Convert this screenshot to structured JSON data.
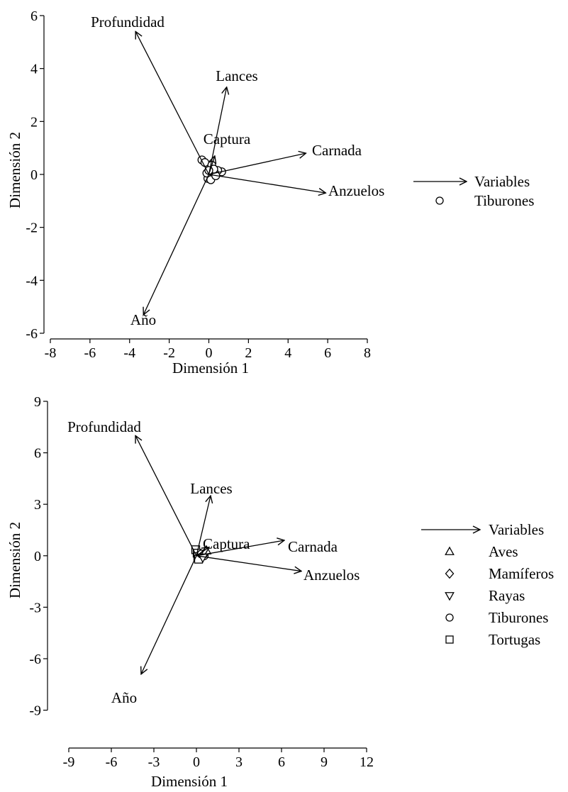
{
  "chart_data": [
    {
      "type": "biplot",
      "xlabel": "Dimensión 1",
      "ylabel": "Dimensión 2",
      "xlim": [
        -8,
        8
      ],
      "ylim": [
        -6,
        6
      ],
      "x_ticks": [
        -8,
        -6,
        -4,
        -2,
        0,
        2,
        4,
        6,
        8
      ],
      "y_ticks": [
        -6,
        -4,
        -2,
        0,
        2,
        4,
        6
      ],
      "legend_position": "right",
      "legend": [
        {
          "label": "Variables",
          "symbol": "arrow"
        },
        {
          "label": "Tiburones",
          "symbol": "circle"
        }
      ],
      "vectors": [
        {
          "name": "Profundidad",
          "x": -3.7,
          "y": 5.4
        },
        {
          "name": "Lances",
          "x": 0.9,
          "y": 3.3
        },
        {
          "name": "Captura",
          "x": 0.3,
          "y": 0.7
        },
        {
          "name": "Carnada",
          "x": 4.9,
          "y": 0.8
        },
        {
          "name": "Anzuelos",
          "x": 5.9,
          "y": -0.7
        },
        {
          "name": "Año",
          "x": -3.3,
          "y": -5.3
        }
      ],
      "points": [
        {
          "group": "Tiburones",
          "x": -0.35,
          "y": 0.55
        },
        {
          "group": "Tiburones",
          "x": -0.2,
          "y": 0.45
        },
        {
          "group": "Tiburones",
          "x": 0.15,
          "y": 0.35
        },
        {
          "group": "Tiburones",
          "x": 0.65,
          "y": 0.1
        },
        {
          "group": "Tiburones",
          "x": 0.45,
          "y": 0.15
        },
        {
          "group": "Tiburones",
          "x": 0.3,
          "y": 0.05
        },
        {
          "group": "Tiburones",
          "x": 0.05,
          "y": 0.0
        },
        {
          "group": "Tiburones",
          "x": 0.2,
          "y": -0.05
        },
        {
          "group": "Tiburones",
          "x": -0.05,
          "y": -0.15
        },
        {
          "group": "Tiburones",
          "x": 0.1,
          "y": -0.2
        },
        {
          "group": "Tiburones",
          "x": 0.35,
          "y": -0.05
        },
        {
          "group": "Tiburones",
          "x": 0.25,
          "y": 0.2
        },
        {
          "group": "Tiburones",
          "x": -0.1,
          "y": 0.05
        },
        {
          "group": "Tiburones",
          "x": 0.0,
          "y": 0.15
        }
      ]
    },
    {
      "type": "biplot",
      "xlabel": "Dimensión 1",
      "ylabel": "Dimensión 2",
      "xlim": [
        -10,
        12
      ],
      "ylim": [
        -11,
        9
      ],
      "x_ticks": [
        -9,
        -6,
        -3,
        0,
        3,
        6,
        9,
        12
      ],
      "y_ticks": [
        -9,
        -6,
        -3,
        0,
        3,
        6,
        9
      ],
      "legend_position": "right",
      "legend": [
        {
          "label": "Variables",
          "symbol": "arrow"
        },
        {
          "label": "Aves",
          "symbol": "triangle-up"
        },
        {
          "label": "Mamíferos",
          "symbol": "diamond"
        },
        {
          "label": "Rayas",
          "symbol": "triangle-down"
        },
        {
          "label": "Tiburones",
          "symbol": "circle"
        },
        {
          "label": "Tortugas",
          "symbol": "square"
        }
      ],
      "vectors": [
        {
          "name": "Profundidad",
          "x": -4.3,
          "y": 7.0
        },
        {
          "name": "Lances",
          "x": 1.0,
          "y": 3.5
        },
        {
          "name": "Captura",
          "x": 0.9,
          "y": 0.5
        },
        {
          "name": "Carnada",
          "x": 6.2,
          "y": 0.9
        },
        {
          "name": "Anzuelos",
          "x": 7.4,
          "y": -0.9
        },
        {
          "name": "Año",
          "x": -3.9,
          "y": -6.9
        }
      ],
      "points": [
        {
          "group": "Tortugas",
          "x": -0.05,
          "y": 0.35
        },
        {
          "group": "Tortugas",
          "x": 0.05,
          "y": 0.15
        },
        {
          "group": "Tortugas",
          "x": 0.1,
          "y": -0.05
        },
        {
          "group": "Tortugas",
          "x": 0.15,
          "y": -0.2
        },
        {
          "group": "Tiburones",
          "x": 0.35,
          "y": 0.1
        },
        {
          "group": "Tiburones",
          "x": 0.55,
          "y": 0.0
        },
        {
          "group": "Mamíferos",
          "x": 0.6,
          "y": 0.15
        },
        {
          "group": "Rayas",
          "x": 0.45,
          "y": -0.1
        },
        {
          "group": "Aves",
          "x": 0.7,
          "y": 0.3
        }
      ]
    }
  ]
}
